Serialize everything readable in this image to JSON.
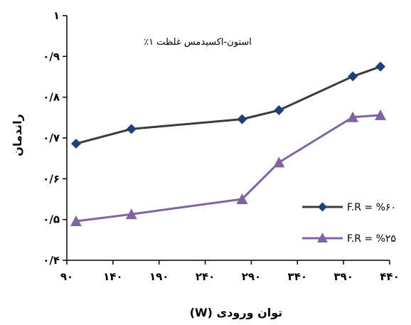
{
  "chart_data": {
    "type": "line",
    "annotation": "استون-اکسیدمس غلظت ۱٪",
    "xlabel": "توان ورودی (W)",
    "ylabel": "راندمان",
    "x_tick_labels": [
      "۹۰",
      "۱۴۰",
      "۱۹۰",
      "۲۴۰",
      "۲۹۰",
      "۳۴۰",
      "۳۹۰",
      "۴۴۰"
    ],
    "x_ticks": [
      90,
      140,
      190,
      240,
      290,
      340,
      390,
      440
    ],
    "y_tick_labels": [
      "۰/۴",
      "۰/۵",
      "۰/۶",
      "۰/۷",
      "۰/۸",
      "۰/۹",
      "۱"
    ],
    "y_ticks": [
      0.4,
      0.5,
      0.6,
      0.7,
      0.8,
      0.9,
      1.0
    ],
    "xlim": [
      90,
      440
    ],
    "ylim": [
      0.4,
      1.0
    ],
    "grid": false,
    "legend_position": "right",
    "series": [
      {
        "name": "F.R = %۶۰",
        "marker": "diamond",
        "color": "#3b3b3b",
        "marker_color": "#1f3f7a",
        "x": [
          100,
          160,
          280,
          320,
          400,
          430
        ],
        "y": [
          0.686,
          0.722,
          0.746,
          0.768,
          0.851,
          0.875
        ]
      },
      {
        "name": "F.R = %۲۵",
        "marker": "triangle",
        "color": "#8064a2",
        "marker_color": "#8064a2",
        "x": [
          100,
          160,
          280,
          320,
          400,
          430
        ],
        "y": [
          0.496,
          0.513,
          0.55,
          0.64,
          0.751,
          0.756
        ]
      }
    ]
  }
}
